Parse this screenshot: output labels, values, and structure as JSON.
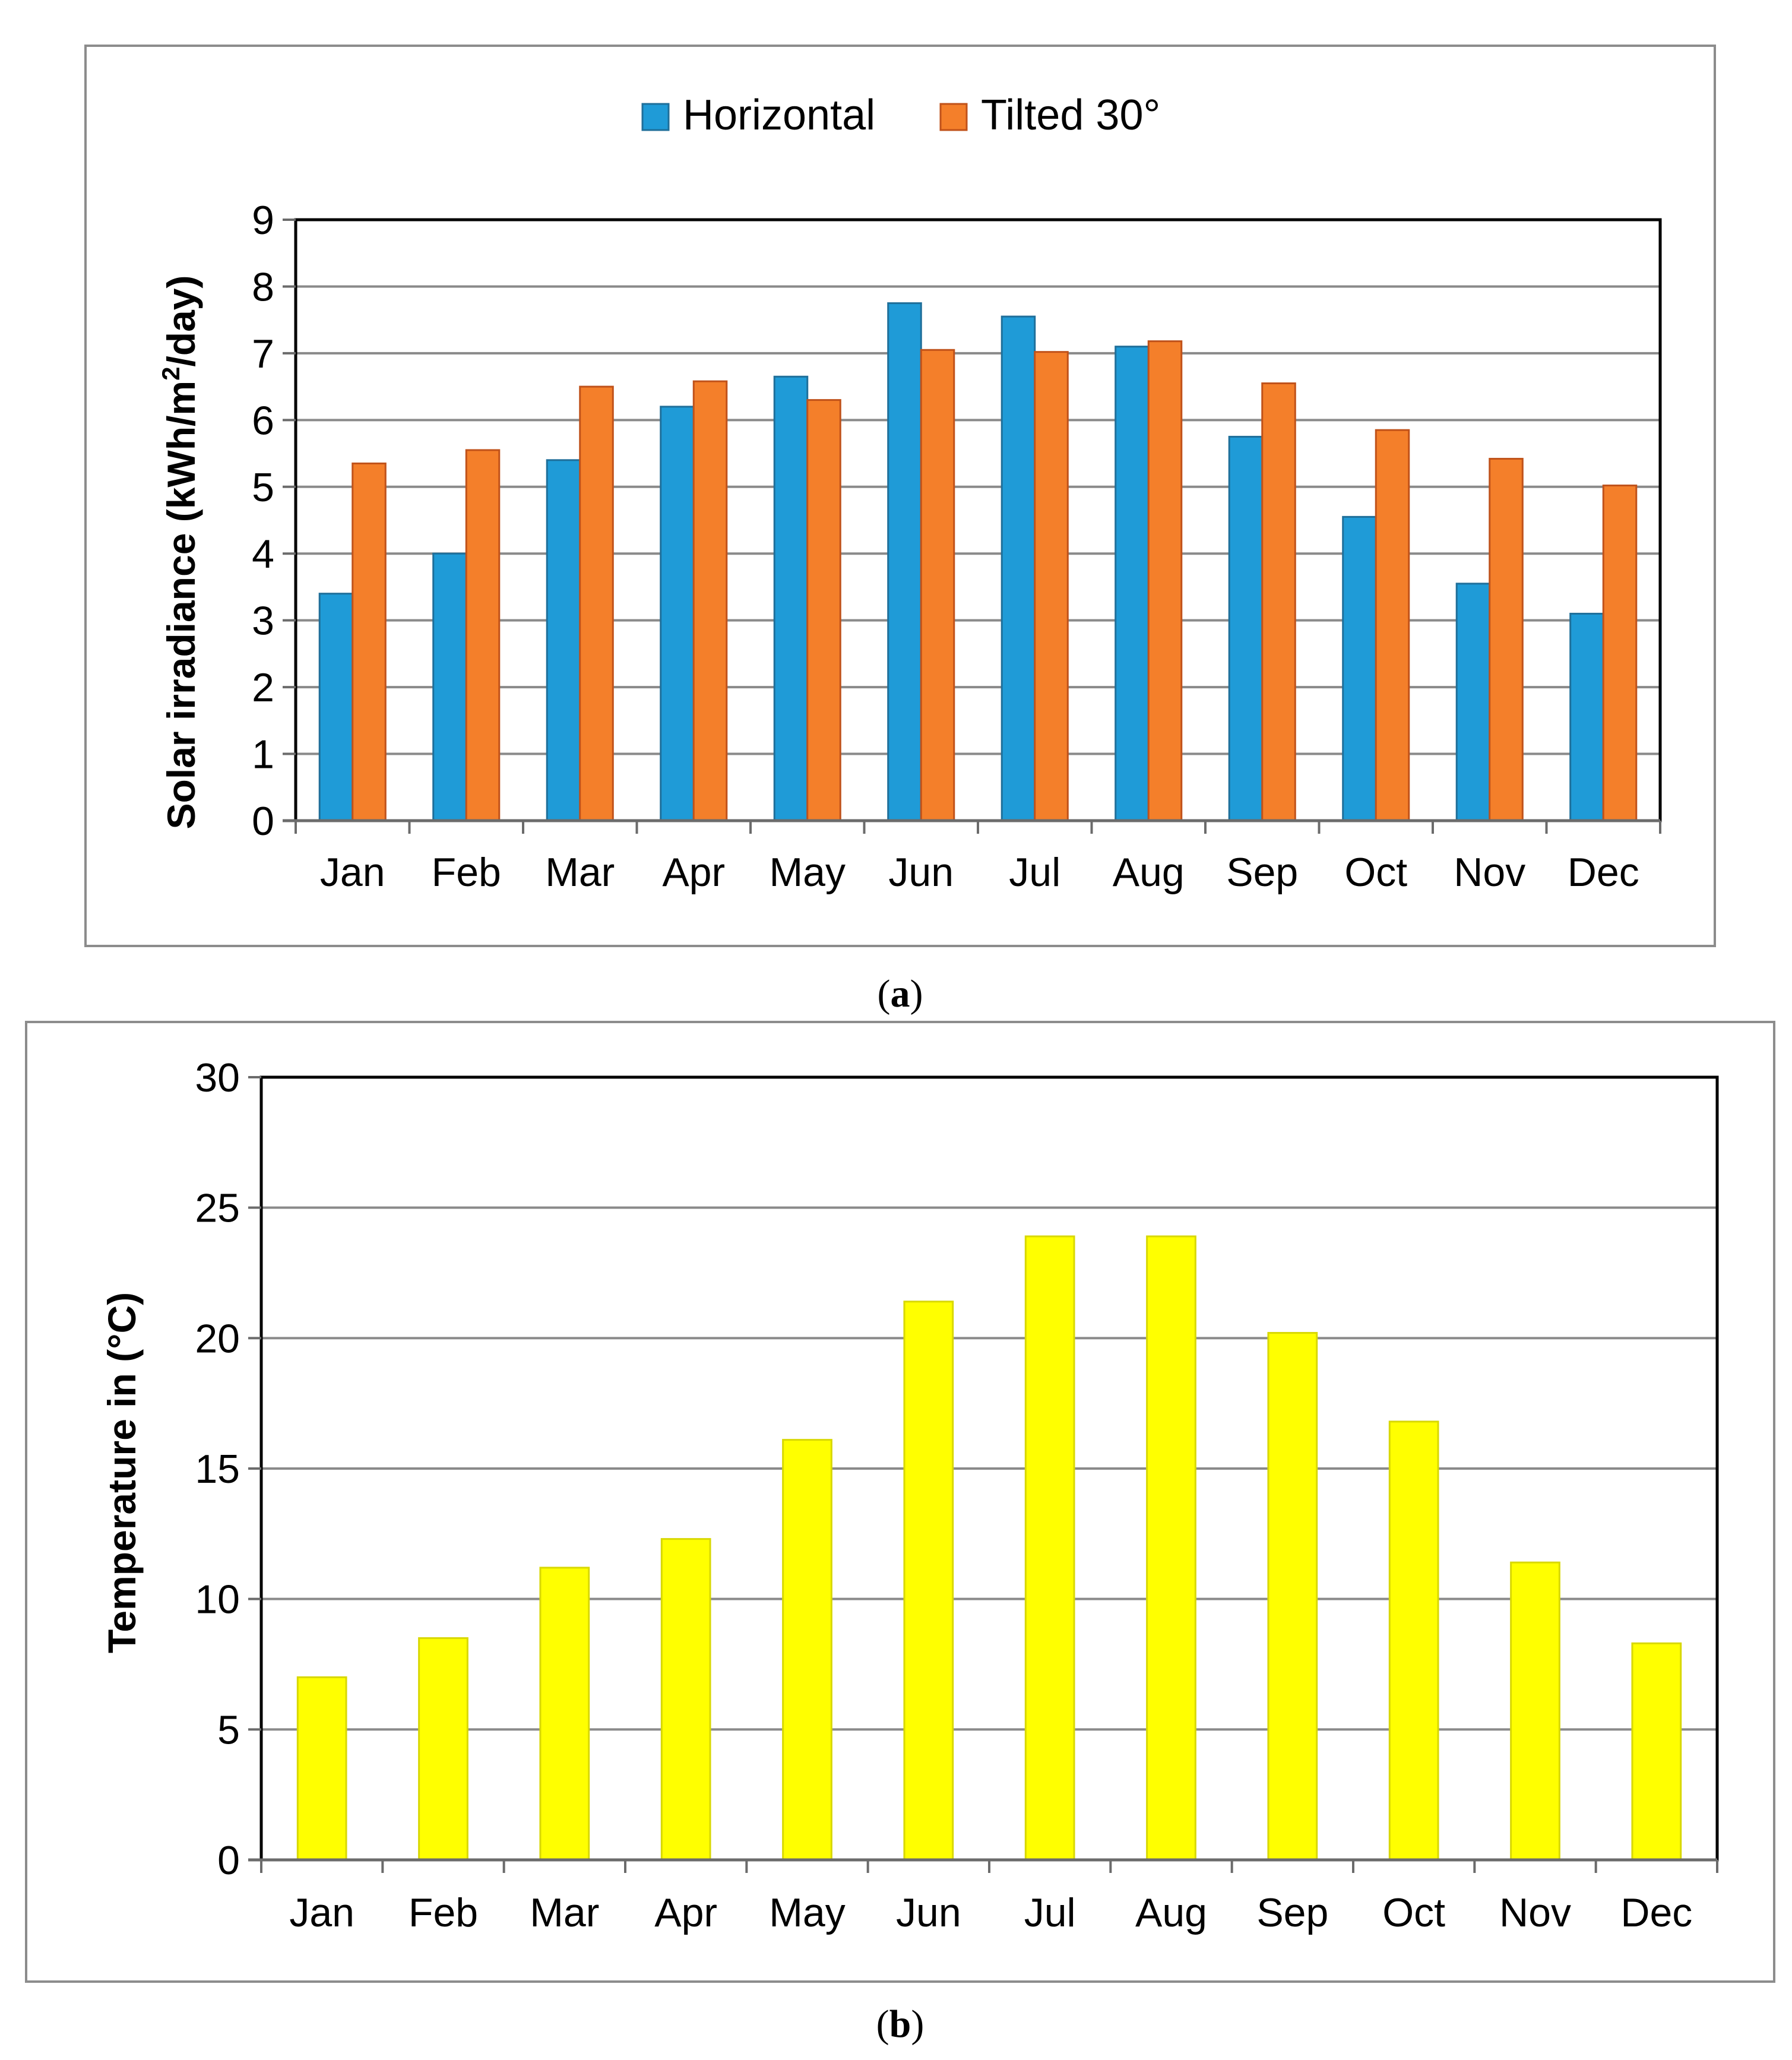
{
  "colors": {
    "horizontal": "#1f9bd7",
    "tilted": "#f47f2a",
    "temperature": "#ffff00",
    "bar_edge": "#7a7a7a"
  },
  "chart_data": [
    {
      "type": "bar",
      "panel_label": "a",
      "categories": [
        "Jan",
        "Feb",
        "Mar",
        "Apr",
        "May",
        "Jun",
        "Jul",
        "Aug",
        "Sep",
        "Oct",
        "Nov",
        "Dec"
      ],
      "series": [
        {
          "name": "Horizontal",
          "color": "#1f9bd7",
          "edge": "#1f6f9a",
          "values": [
            3.4,
            4.0,
            5.4,
            6.2,
            6.65,
            7.75,
            7.55,
            7.1,
            5.75,
            4.55,
            3.55,
            3.1
          ]
        },
        {
          "name": "Tilted 30°",
          "color": "#f47f2a",
          "edge": "#c0521a",
          "values": [
            5.35,
            5.55,
            6.5,
            6.58,
            6.3,
            7.05,
            7.02,
            7.18,
            6.55,
            5.85,
            5.42,
            5.02
          ]
        }
      ],
      "title": "",
      "xlabel": "",
      "ylabel_main": "Solar irradiance (kWh/m",
      "ylabel_sup": "2",
      "ylabel_tail": "/day)",
      "ylim": [
        0,
        9
      ],
      "yticks": [
        "0",
        "1",
        "2",
        "3",
        "4",
        "5",
        "6",
        "7",
        "8",
        "9"
      ],
      "grid": true,
      "legend": "top-center"
    },
    {
      "type": "bar",
      "panel_label": "b",
      "categories": [
        "Jan",
        "Feb",
        "Mar",
        "Apr",
        "May",
        "Jun",
        "Jul",
        "Aug",
        "Sep",
        "Oct",
        "Nov",
        "Dec"
      ],
      "series": [
        {
          "name": "Temperature",
          "color": "#ffff00",
          "edge": "#d8d800",
          "values": [
            7.0,
            8.5,
            11.2,
            12.3,
            16.1,
            21.4,
            23.9,
            23.9,
            20.2,
            16.8,
            11.4,
            8.3
          ]
        }
      ],
      "title": "",
      "xlabel": "",
      "ylabel": "Temperature in (°C)",
      "ylim": [
        0,
        30
      ],
      "yticks": [
        "0",
        "5",
        "10",
        "15",
        "20",
        "25",
        "30"
      ],
      "grid": true,
      "legend": "none"
    }
  ]
}
